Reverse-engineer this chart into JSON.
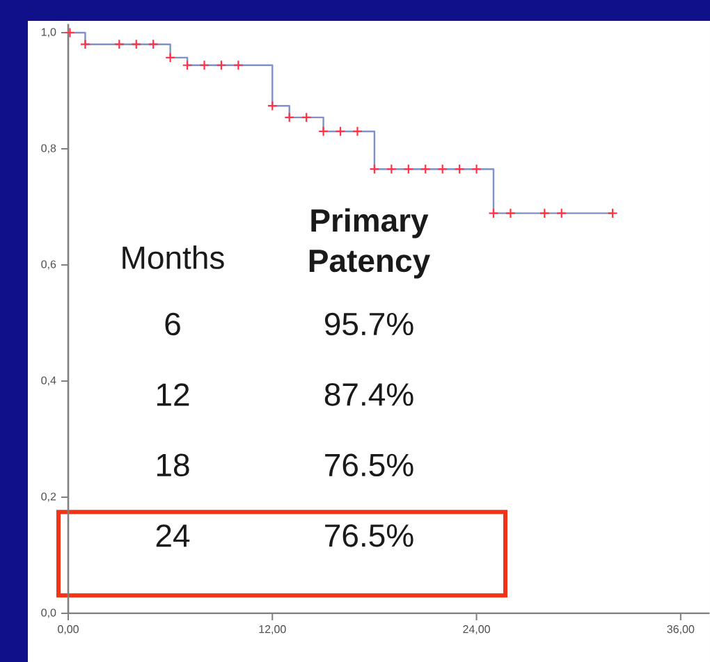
{
  "chart_data": {
    "type": "step",
    "xlim": [
      0,
      37.7
    ],
    "ylim": [
      0,
      1.015
    ],
    "xticks": [
      {
        "value": 0,
        "label": "0,00"
      },
      {
        "value": 12,
        "label": "12,00"
      },
      {
        "value": 24,
        "label": "24,00"
      },
      {
        "value": 36,
        "label": "36,00"
      }
    ],
    "yticks": [
      {
        "value": 0,
        "label": "0,0"
      },
      {
        "value": 0.2,
        "label": "0,2"
      },
      {
        "value": 0.4,
        "label": "0,4"
      },
      {
        "value": 0.6,
        "label": "0,6"
      },
      {
        "value": 0.8,
        "label": "0,8"
      },
      {
        "value": 1,
        "label": "1,0"
      }
    ],
    "series": [
      {
        "color": "#8090c8",
        "x": [
          0,
          1,
          6,
          7,
          12,
          13,
          15,
          18,
          25,
          32
        ],
        "values": [
          1,
          0.98,
          0.957,
          0.944,
          0.874,
          0.854,
          0.83,
          0.765,
          0.689,
          0.689
        ]
      },
      {
        "type": "scatter",
        "marker": "cross",
        "color": "#ff3344",
        "x": [
          0.1,
          1,
          3,
          4,
          5,
          6,
          7,
          8,
          9,
          10,
          12,
          13,
          14,
          15,
          16,
          17,
          18,
          19,
          20,
          21,
          22,
          23,
          24,
          25,
          26,
          28,
          29,
          32
        ],
        "values": [
          1,
          0.98,
          0.98,
          0.98,
          0.98,
          0.957,
          0.944,
          0.944,
          0.944,
          0.944,
          0.874,
          0.854,
          0.854,
          0.83,
          0.83,
          0.83,
          0.765,
          0.765,
          0.765,
          0.765,
          0.765,
          0.765,
          0.765,
          0.689,
          0.689,
          0.689,
          0.689,
          0.689
        ]
      }
    ],
    "annotations": [
      "Months",
      "Primary Patency",
      "6",
      "95.7%",
      "12",
      "87.4%",
      "18",
      "76.5%",
      "24",
      "76.5%"
    ]
  }
}
